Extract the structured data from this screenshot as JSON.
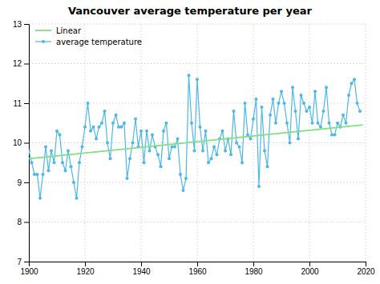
{
  "chart_data": {
    "type": "line",
    "title": "Vancouver average temperature per year",
    "x": [
      1900,
      1901,
      1902,
      1903,
      1904,
      1905,
      1906,
      1907,
      1908,
      1909,
      1910,
      1911,
      1912,
      1913,
      1914,
      1915,
      1916,
      1917,
      1918,
      1919,
      1920,
      1921,
      1922,
      1923,
      1924,
      1925,
      1926,
      1927,
      1928,
      1929,
      1930,
      1931,
      1932,
      1933,
      1934,
      1935,
      1936,
      1937,
      1938,
      1939,
      1940,
      1941,
      1942,
      1943,
      1944,
      1945,
      1946,
      1947,
      1948,
      1949,
      1950,
      1951,
      1952,
      1953,
      1954,
      1955,
      1956,
      1957,
      1958,
      1959,
      1960,
      1961,
      1962,
      1963,
      1964,
      1965,
      1966,
      1967,
      1968,
      1969,
      1970,
      1971,
      1972,
      1973,
      1974,
      1975,
      1976,
      1977,
      1978,
      1979,
      1980,
      1981,
      1982,
      1983,
      1984,
      1985,
      1986,
      1987,
      1988,
      1989,
      1990,
      1991,
      1992,
      1993,
      1994,
      1995,
      1996,
      1997,
      1998,
      1999,
      2000,
      2001,
      2002,
      2003,
      2004,
      2005,
      2006,
      2007,
      2008,
      2009,
      2010,
      2011,
      2012,
      2013,
      2014,
      2015,
      2016,
      2017,
      2018
    ],
    "series": [
      {
        "name": "Linear",
        "color": "#80e080",
        "x": [
          1900,
          2019
        ],
        "values": [
          9.6,
          10.45
        ]
      },
      {
        "name": "average temperature",
        "color": "#4db8e8",
        "marker": "circle",
        "values": [
          9.8,
          9.5,
          9.2,
          9.2,
          8.6,
          9.2,
          9.9,
          9.3,
          9.8,
          9.5,
          10.3,
          10.2,
          9.5,
          9.3,
          9.8,
          9.4,
          9.0,
          8.6,
          9.5,
          9.9,
          10.4,
          11.0,
          10.3,
          10.4,
          10.1,
          10.4,
          10.5,
          10.8,
          10.0,
          9.6,
          10.5,
          10.7,
          10.4,
          10.4,
          10.5,
          9.1,
          9.6,
          10.0,
          10.6,
          9.9,
          10.3,
          9.5,
          10.3,
          9.8,
          10.2,
          9.9,
          9.7,
          9.4,
          10.3,
          10.5,
          9.6,
          9.9,
          9.9,
          10.1,
          9.2,
          8.8,
          9.1,
          11.7,
          10.5,
          9.8,
          11.6,
          10.4,
          9.8,
          10.3,
          9.5,
          9.6,
          9.9,
          9.7,
          10.1,
          10.3,
          9.8,
          10.1,
          9.7,
          10.8,
          10.0,
          9.9,
          9.5,
          11.0,
          10.2,
          10.1,
          10.6,
          11.1,
          8.9,
          10.9,
          9.8,
          9.4,
          10.7,
          11.1,
          10.5,
          11.0,
          11.3,
          11.0,
          10.5,
          10.0,
          11.4,
          10.8,
          10.1,
          11.2,
          11.0,
          10.8,
          10.9,
          10.5,
          11.3,
          10.5,
          10.4,
          10.8,
          11.4,
          10.5,
          10.2,
          10.2,
          10.5,
          10.4,
          10.7,
          10.5,
          11.2,
          11.5,
          11.6,
          11.0,
          10.8
        ]
      }
    ],
    "xlim": [
      1900,
      2020
    ],
    "ylim": [
      7,
      13
    ],
    "xticks": [
      1900,
      1920,
      1940,
      1960,
      1980,
      2000,
      2020
    ],
    "yticks": [
      7,
      8,
      9,
      10,
      11,
      12,
      13
    ],
    "grid": true,
    "legend": "upper left"
  }
}
